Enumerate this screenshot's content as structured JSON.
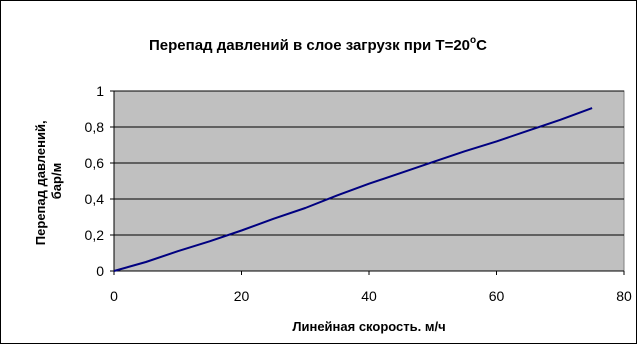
{
  "chart_data": {
    "type": "line",
    "title": {
      "main": "Перепад давлений в слое загрузк при T=20",
      "degree": "o",
      "unit": "C"
    },
    "xlabel": "Линейная скорость. м/ч",
    "ylabel": [
      "Перепад давлений,",
      "бар/м"
    ],
    "xlim": [
      0,
      80
    ],
    "ylim": [
      0,
      1
    ],
    "x_ticks": [
      "0",
      "20",
      "40",
      "60",
      "80"
    ],
    "y_ticks": [
      "0",
      "0,2",
      "0,4",
      "0,6",
      "0,8",
      "1"
    ],
    "grid": "horizontal",
    "legend": "none",
    "colors": {
      "plot_background": "#c0c0c0",
      "series_line": "#000080",
      "gridlines": "#000000"
    },
    "series": [
      {
        "x": [
          0,
          5,
          10,
          15,
          20,
          25,
          30,
          35,
          40,
          45,
          50,
          55,
          60,
          65,
          70,
          75
        ],
        "y": [
          0,
          0.05,
          0.11,
          0.165,
          0.225,
          0.29,
          0.35,
          0.42,
          0.485,
          0.545,
          0.605,
          0.665,
          0.72,
          0.78,
          0.84,
          0.905
        ]
      }
    ]
  }
}
